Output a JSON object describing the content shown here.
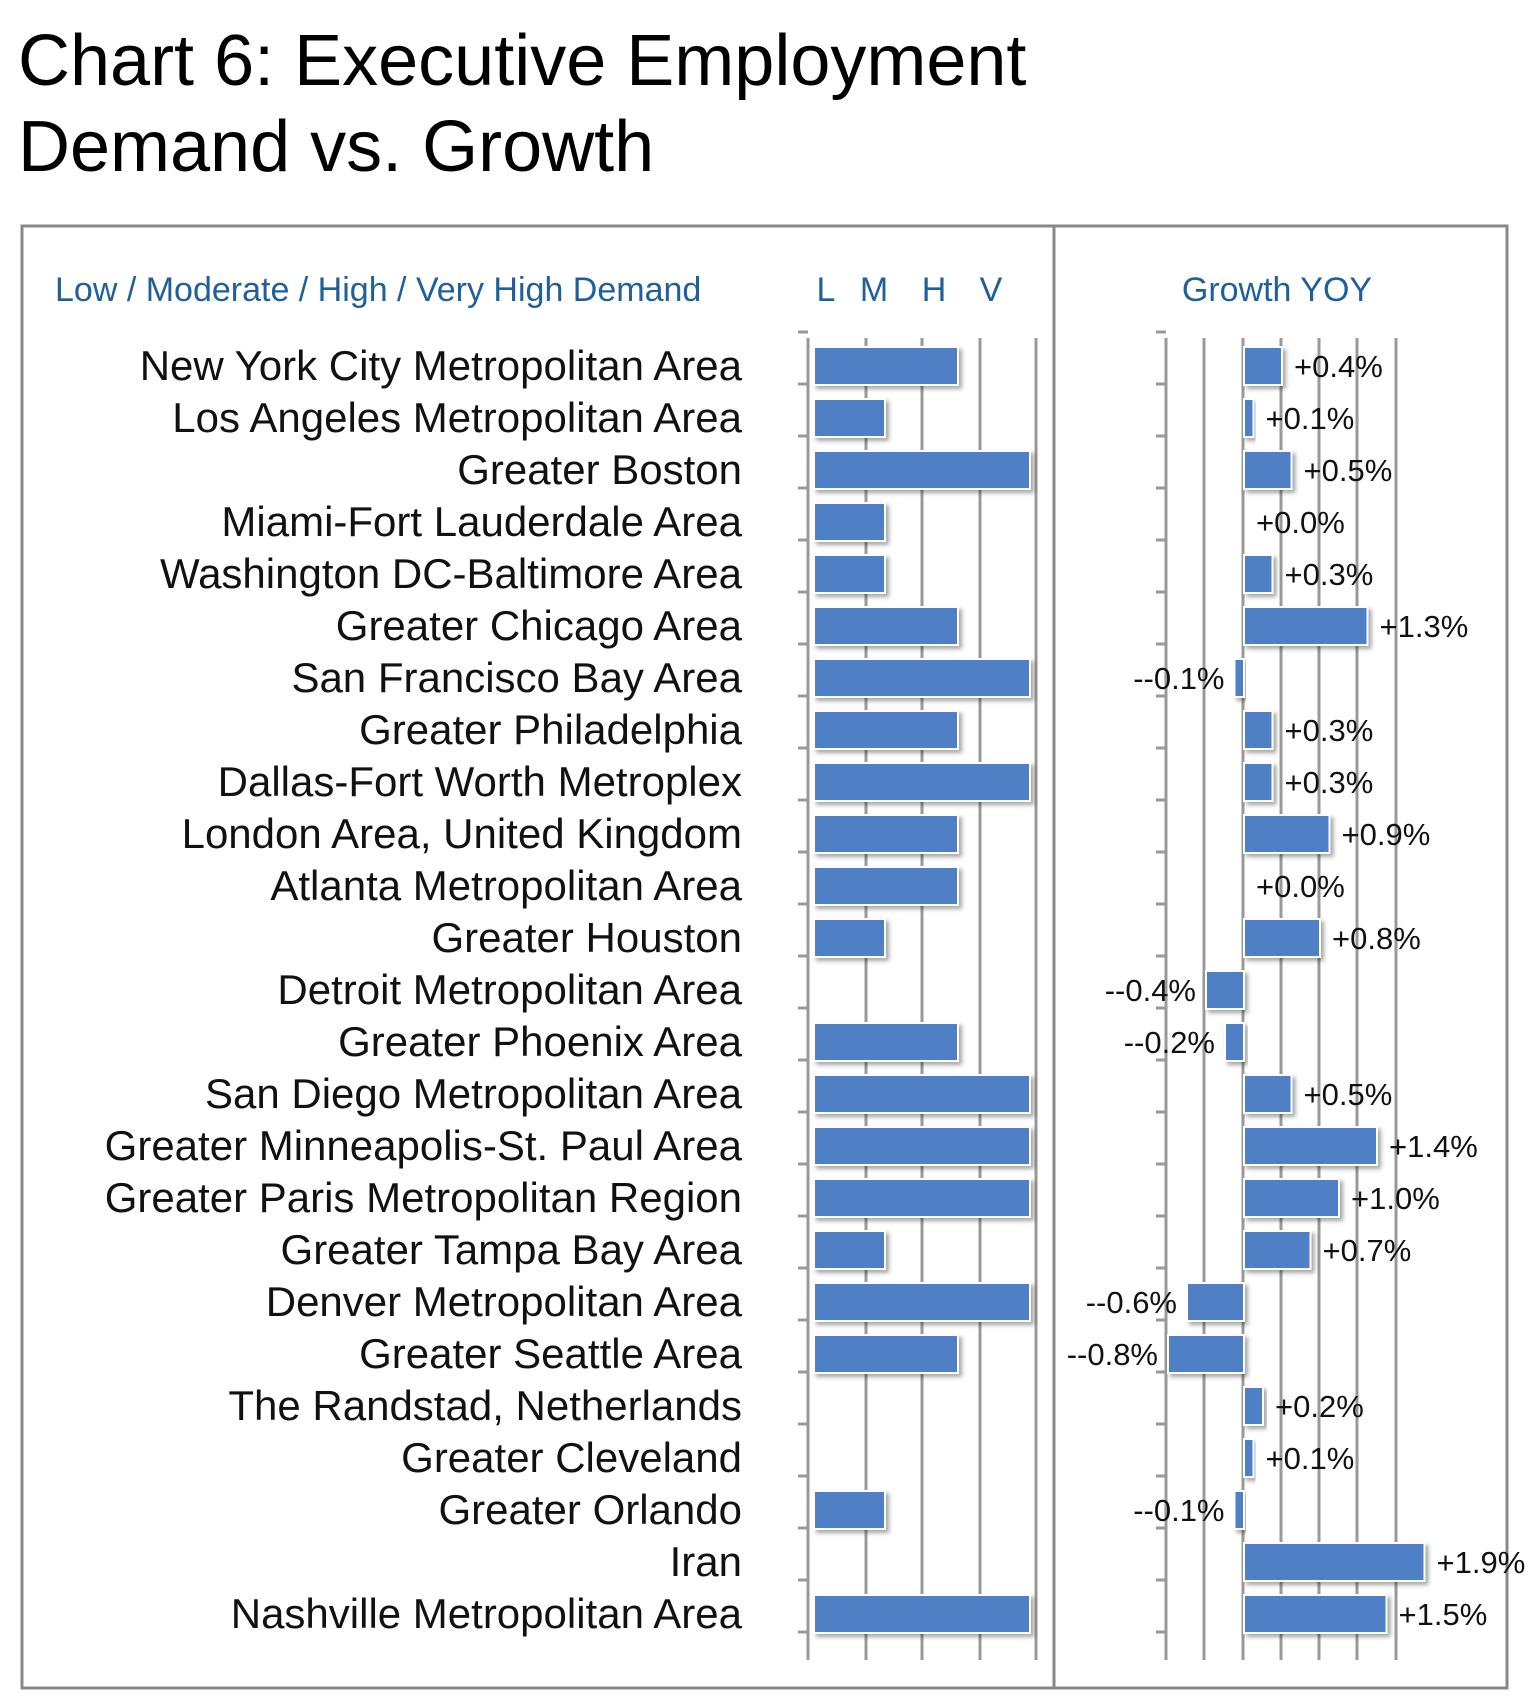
{
  "title": "Chart 6: Executive Employment Demand vs. Growth",
  "chart_data": {
    "type": "bar",
    "demand_panel": {
      "header": "Low / Moderate / High / Very High Demand",
      "level_labels": [
        "L",
        "M",
        "H",
        "V"
      ]
    },
    "growth_panel": {
      "header": "Growth YOY"
    },
    "categories": [
      "New York City Metropolitan Area",
      "Los Angeles Metropolitan Area",
      "Greater Boston",
      "Miami-Fort Lauderdale Area",
      "Washington DC-Baltimore Area",
      "Greater Chicago Area",
      "San Francisco Bay Area",
      "Greater Philadelphia",
      "Dallas-Fort Worth Metroplex",
      "London Area, United Kingdom",
      "Atlanta Metropolitan Area",
      "Greater Houston",
      "Detroit Metropolitan Area",
      "Greater Phoenix Area",
      "San Diego Metropolitan Area",
      "Greater Minneapolis-St. Paul Area",
      "Greater Paris Metropolitan Region",
      "Greater Tampa Bay Area",
      "Denver Metropolitan Area",
      "Greater Seattle Area",
      "The Randstad, Netherlands",
      "Greater Cleveland",
      "Greater Orlando",
      "Iran",
      "Nashville Metropolitan Area"
    ],
    "demand_levels": [
      3,
      2,
      4,
      2,
      2,
      3,
      4,
      3,
      4,
      3,
      3,
      2,
      0,
      3,
      4,
      4,
      4,
      2,
      4,
      3,
      0,
      0,
      2,
      0,
      4
    ],
    "growth_values": [
      0.4,
      0.1,
      0.5,
      0.0,
      0.3,
      1.3,
      -0.1,
      0.3,
      0.3,
      0.9,
      0.0,
      0.8,
      -0.4,
      -0.2,
      0.5,
      1.4,
      1.0,
      0.7,
      -0.6,
      -0.8,
      0.2,
      0.1,
      -0.1,
      1.9,
      1.5
    ],
    "growth_labels": [
      "+0.4%",
      "+0.1%",
      "+0.5%",
      "+0.0%",
      "+0.3%",
      "+1.3%",
      "--0.1%",
      "+0.3%",
      "+0.3%",
      "+0.9%",
      "+0.0%",
      "+0.8%",
      "--0.4%",
      "--0.2%",
      "+0.5%",
      "+1.4%",
      "+1.0%",
      "+0.7%",
      "--0.6%",
      "--0.8%",
      "+0.2%",
      "+0.1%",
      "--0.1%",
      "+1.9%",
      "+1.5%"
    ],
    "bar_color": "#4f7fc4",
    "header_color": "#1f5f9b"
  }
}
